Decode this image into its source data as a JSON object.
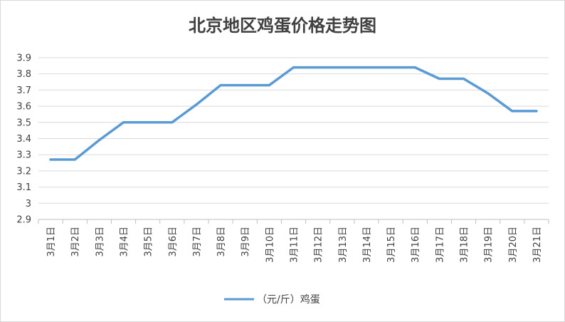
{
  "chart_data": {
    "type": "line",
    "title": "北京地区鸡蛋价格走势图",
    "xlabel": "",
    "ylabel": "",
    "categories": [
      "3月1日",
      "3月2日",
      "3月3日",
      "3月4日",
      "3月5日",
      "3月6日",
      "3月7日",
      "3月8日",
      "3月9日",
      "3月10日",
      "3月11日",
      "3月12日",
      "3月13日",
      "3月14日",
      "3月15日",
      "3月16日",
      "3月17日",
      "3月18日",
      "3月19日",
      "3月20日",
      "3月21日"
    ],
    "series": [
      {
        "name": "（元/斤）鸡蛋",
        "color": "#5b9bd5",
        "values": [
          3.27,
          3.27,
          3.39,
          3.5,
          3.5,
          3.5,
          3.61,
          3.73,
          3.73,
          3.73,
          3.84,
          3.84,
          3.84,
          3.84,
          3.84,
          3.84,
          3.77,
          3.77,
          3.68,
          3.57,
          3.57
        ]
      }
    ],
    "ylim": [
      2.9,
      3.9
    ],
    "yticks": [
      "2.9",
      "3",
      "3.1",
      "3.2",
      "3.3",
      "3.4",
      "3.5",
      "3.6",
      "3.7",
      "3.8",
      "3.9"
    ],
    "grid": true,
    "legend": "bottom-center",
    "colors": {
      "grid": "#d9d9d9",
      "axis": "#bfbfbf",
      "text": "#404040"
    }
  }
}
